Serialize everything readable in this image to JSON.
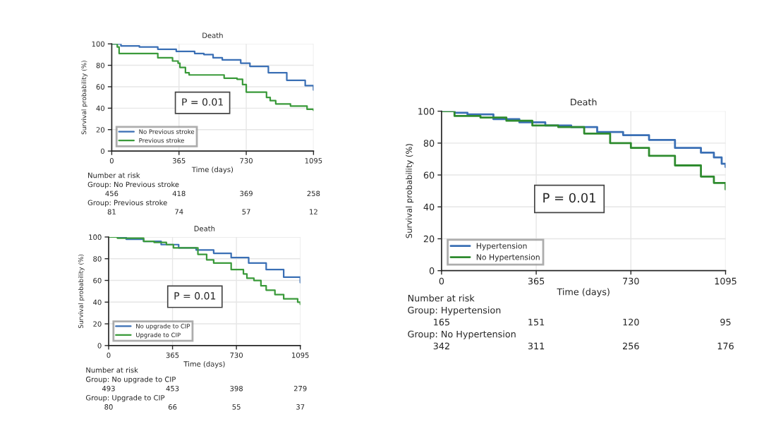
{
  "chart_data": [
    {
      "type": "step",
      "title": "Death",
      "xlabel": "Time (days)",
      "ylabel": "Survival probability (%)",
      "xlim": [
        0,
        1095
      ],
      "xticks": [
        0,
        365,
        730,
        1095
      ],
      "ylim": [
        0,
        100
      ],
      "yticks": [
        0,
        20,
        40,
        60,
        80,
        100
      ],
      "grid": true,
      "legend": "bottom left",
      "series": [
        {
          "name": "No Previous stroke",
          "color": "#3a6fb5",
          "x": [
            0,
            50,
            150,
            250,
            350,
            450,
            500,
            550,
            600,
            700,
            750,
            850,
            950,
            1050,
            1095
          ],
          "values": [
            100,
            98,
            97,
            95,
            93,
            91,
            90,
            87,
            85,
            82,
            79,
            73,
            66,
            61,
            57
          ]
        },
        {
          "name": "Previous stroke",
          "color": "#3a9a3a",
          "x": [
            0,
            30,
            40,
            250,
            330,
            360,
            370,
            400,
            420,
            610,
            680,
            710,
            730,
            840,
            860,
            890,
            970,
            1060,
            1095
          ],
          "values": [
            100,
            97,
            91,
            87,
            84,
            82,
            78,
            73,
            71,
            68,
            67,
            62,
            55,
            50,
            47,
            44,
            42,
            39,
            38
          ]
        }
      ],
      "annotations": [
        "P = 0.01",
        "Number at risk",
        "Group: No Previous stroke",
        "456 418 369 258",
        "Group: Previous stroke",
        "81 74 57 12"
      ]
    },
    {
      "type": "step",
      "title": "Death",
      "xlabel": "Time (days)",
      "ylabel": "Survival probability (%)",
      "xlim": [
        0,
        1095
      ],
      "xticks": [
        0,
        365,
        730,
        1095
      ],
      "ylim": [
        0,
        100
      ],
      "yticks": [
        0,
        20,
        40,
        60,
        80,
        100
      ],
      "grid": true,
      "legend": "bottom left",
      "series": [
        {
          "name": "No upgrade to CIP",
          "color": "#3a6fb5",
          "x": [
            0,
            100,
            200,
            300,
            400,
            500,
            600,
            700,
            800,
            900,
            1000,
            1095
          ],
          "values": [
            100,
            98,
            96,
            93,
            90,
            88,
            85,
            81,
            76,
            70,
            63,
            58
          ]
        },
        {
          "name": "Upgrade to CIP",
          "color": "#3a9a3a",
          "x": [
            0,
            50,
            200,
            260,
            330,
            370,
            510,
            560,
            600,
            700,
            770,
            790,
            830,
            870,
            900,
            950,
            1000,
            1080,
            1095
          ],
          "values": [
            100,
            99,
            96,
            95,
            93,
            90,
            84,
            79,
            76,
            70,
            66,
            62,
            60,
            55,
            51,
            47,
            43,
            40,
            38
          ]
        }
      ],
      "annotations": [
        "P = 0.01",
        "Number at risk",
        "Group: No upgrade to CIP",
        "493 453 398 279",
        "Group: Upgrade to CIP",
        "80 66 55 37"
      ]
    },
    {
      "type": "step",
      "title": "Death",
      "xlabel": "Time (days)",
      "ylabel": "Survival probability (%)",
      "xlim": [
        0,
        1095
      ],
      "xticks": [
        0,
        365,
        730,
        1095
      ],
      "ylim": [
        0,
        100
      ],
      "yticks": [
        0,
        20,
        40,
        60,
        80,
        100
      ],
      "grid": true,
      "legend": "bottom left",
      "series": [
        {
          "name": "Hypertension",
          "color": "#3a6fb5",
          "x": [
            0,
            50,
            100,
            200,
            300,
            400,
            500,
            600,
            700,
            800,
            900,
            1000,
            1050,
            1080,
            1095
          ],
          "values": [
            100,
            99,
            98,
            95,
            93,
            91,
            90,
            87,
            85,
            82,
            77,
            74,
            71,
            67,
            65
          ]
        },
        {
          "name": "No Hypertension",
          "color": "#2e8b2e",
          "x": [
            0,
            50,
            150,
            250,
            350,
            450,
            550,
            650,
            730,
            800,
            900,
            1000,
            1050,
            1095
          ],
          "values": [
            100,
            97,
            96,
            94,
            91,
            90,
            86,
            80,
            77,
            72,
            66,
            59,
            55,
            51
          ]
        }
      ],
      "annotations": [
        "P = 0.01",
        "Number at risk",
        "Group: Hypertension",
        "165 151 120 95",
        "Group: No Hypertension",
        "342 311 256 176"
      ]
    }
  ]
}
